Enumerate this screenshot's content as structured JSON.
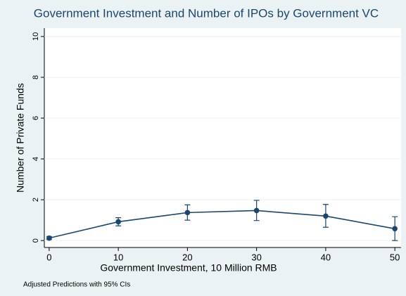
{
  "chart_data": {
    "type": "line",
    "title": "Government Investment and Number of IPOs by Government VC",
    "x_label": "Government Investment, 10 Million RMB",
    "y_label": "Number of Private Funds",
    "note": "Adjusted Predictions with 95% CIs",
    "x": [
      0,
      10,
      20,
      30,
      40,
      50
    ],
    "values": [
      0.12,
      0.92,
      1.37,
      1.47,
      1.2,
      0.58
    ],
    "ci_low": [
      0.05,
      0.72,
      1.0,
      0.98,
      0.65,
      0.0
    ],
    "ci_high": [
      0.2,
      1.12,
      1.75,
      1.97,
      1.77,
      1.17
    ],
    "color": "#1a476f",
    "xlim": [
      -0.7,
      50.9
    ],
    "ylim": [
      -0.34,
      10.41
    ],
    "xticks": [
      0,
      10,
      20,
      30,
      40,
      50
    ],
    "yticks": [
      0,
      2,
      4,
      6,
      8,
      10
    ],
    "grid": true
  }
}
